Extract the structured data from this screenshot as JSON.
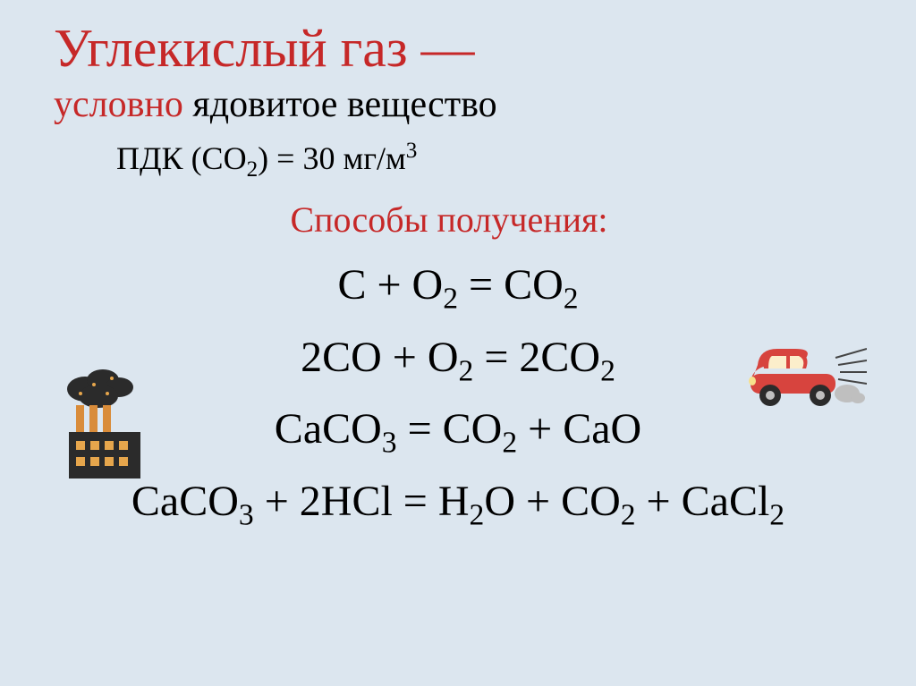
{
  "title": "Углекислый газ —",
  "subtitle_red": "условно ",
  "subtitle_black": "ядовитое вещество",
  "pdk_html": "ПДК (СО<sub>2</sub>) = 30 мг/м<sup>3</sup>",
  "methods_heading": "Способы получения:",
  "equations": [
    "С + О<sub>2</sub> = СО<sub>2</sub>",
    "2СО + О<sub>2</sub> = 2СО<sub>2</sub>",
    "СаСО<sub>3</sub> = СО<sub>2</sub> + СаО",
    "СаСО<sub>3</sub> + 2НСl = Н<sub>2</sub>О + СО<sub>2</sub> + СаСl<sub>2</sub>"
  ],
  "colors": {
    "background": "#dce6ef",
    "title": "#c62828",
    "text": "#000000"
  },
  "fontsize": {
    "title": 60,
    "subtitle": 42,
    "pdk": 36,
    "methods": 40,
    "equation": 48
  },
  "icons": {
    "factory": "factory-pollution-icon",
    "car": "red-car-icon"
  }
}
